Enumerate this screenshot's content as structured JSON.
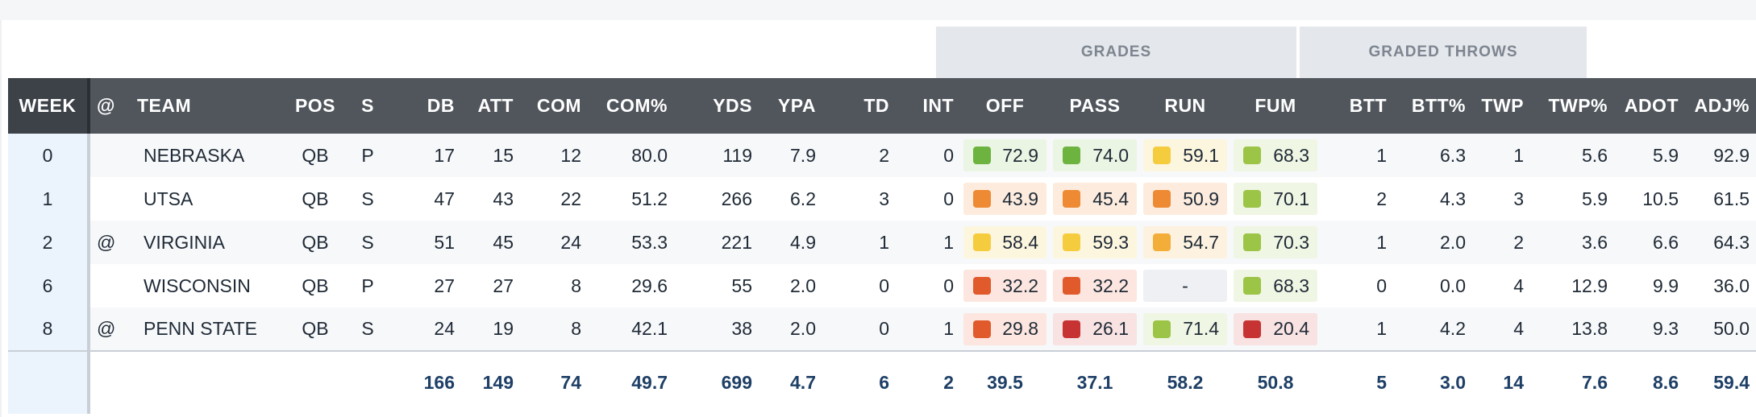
{
  "group_headers": {
    "grades": "GRADES",
    "graded_throws": "GRADED THROWS"
  },
  "columns": [
    "WEEK",
    "@",
    "TEAM",
    "POS",
    "S",
    "DB",
    "ATT",
    "COM",
    "COM%",
    "YDS",
    "YPA",
    "TD",
    "INT",
    "OFF",
    "PASS",
    "RUN",
    "FUM",
    "BTT",
    "BTT%",
    "TWP",
    "TWP%",
    "ADOT",
    "ADJ%"
  ],
  "rows": [
    {
      "week": "0",
      "at": "",
      "team": "NEBRASKA",
      "pos": "QB",
      "s": "P",
      "db": "17",
      "att": "15",
      "com": "12",
      "com_pct": "80.0",
      "yds": "119",
      "ypa": "7.9",
      "td": "2",
      "int": "0",
      "off": "72.9",
      "pass": "74.0",
      "run": "59.1",
      "fum": "68.3",
      "btt": "1",
      "btt_pct": "6.3",
      "twp": "1",
      "twp_pct": "5.6",
      "adot": "5.9",
      "adj_pct": "92.9"
    },
    {
      "week": "1",
      "at": "",
      "team": "UTSA",
      "pos": "QB",
      "s": "S",
      "db": "47",
      "att": "43",
      "com": "22",
      "com_pct": "51.2",
      "yds": "266",
      "ypa": "6.2",
      "td": "3",
      "int": "0",
      "off": "43.9",
      "pass": "45.4",
      "run": "50.9",
      "fum": "70.1",
      "btt": "2",
      "btt_pct": "4.3",
      "twp": "3",
      "twp_pct": "5.9",
      "adot": "10.5",
      "adj_pct": "61.5"
    },
    {
      "week": "2",
      "at": "@",
      "team": "VIRGINIA",
      "pos": "QB",
      "s": "S",
      "db": "51",
      "att": "45",
      "com": "24",
      "com_pct": "53.3",
      "yds": "221",
      "ypa": "4.9",
      "td": "1",
      "int": "1",
      "off": "58.4",
      "pass": "59.3",
      "run": "54.7",
      "fum": "70.3",
      "btt": "1",
      "btt_pct": "2.0",
      "twp": "2",
      "twp_pct": "3.6",
      "adot": "6.6",
      "adj_pct": "64.3"
    },
    {
      "week": "6",
      "at": "",
      "team": "WISCONSIN",
      "pos": "QB",
      "s": "P",
      "db": "27",
      "att": "27",
      "com": "8",
      "com_pct": "29.6",
      "yds": "55",
      "ypa": "2.0",
      "td": "0",
      "int": "0",
      "off": "32.2",
      "pass": "32.2",
      "run": "-",
      "fum": "68.3",
      "btt": "0",
      "btt_pct": "0.0",
      "twp": "4",
      "twp_pct": "12.9",
      "adot": "9.9",
      "adj_pct": "36.0"
    },
    {
      "week": "8",
      "at": "@",
      "team": "PENN STATE",
      "pos": "QB",
      "s": "S",
      "db": "24",
      "att": "19",
      "com": "8",
      "com_pct": "42.1",
      "yds": "38",
      "ypa": "2.0",
      "td": "0",
      "int": "1",
      "off": "29.8",
      "pass": "26.1",
      "run": "71.4",
      "fum": "20.4",
      "btt": "1",
      "btt_pct": "4.2",
      "twp": "4",
      "twp_pct": "13.8",
      "adot": "9.3",
      "adj_pct": "50.0"
    }
  ],
  "totals": {
    "db": "166",
    "att": "149",
    "com": "74",
    "com_pct": "49.7",
    "yds": "699",
    "ypa": "4.7",
    "td": "6",
    "int": "2",
    "off": "39.5",
    "pass": "37.1",
    "run": "58.2",
    "fum": "50.8",
    "btt": "5",
    "btt_pct": "3.0",
    "twp": "14",
    "twp_pct": "7.6",
    "adot": "8.6",
    "adj_pct": "59.4"
  },
  "grade_colors": {
    "elite": {
      "square": "#6db33f",
      "bg": "#ebf5e3"
    },
    "good": {
      "square": "#9cc446",
      "bg": "#f0f6e4"
    },
    "avg": {
      "square": "#f6cc3f",
      "bg": "#fdf6df"
    },
    "below": {
      "square": "#f3ae3a",
      "bg": "#fdf2df"
    },
    "poor": {
      "square": "#ee8a33",
      "bg": "#fdecde"
    },
    "bad": {
      "square": "#e15a2c",
      "bg": "#fce6df"
    },
    "worst": {
      "square": "#c73232",
      "bg": "#f8e2e2"
    }
  }
}
